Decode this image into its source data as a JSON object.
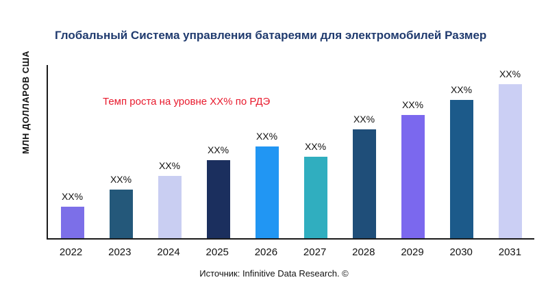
{
  "chart_data": {
    "type": "bar",
    "title": "Глобальный Система управления батареями для электромобилей Размер",
    "ylabel": "МЛН ДОЛЛАРОВ США",
    "xlabel": "",
    "categories": [
      "2022",
      "2023",
      "2024",
      "2025",
      "2026",
      "2027",
      "2028",
      "2029",
      "2030",
      "2031"
    ],
    "values": [
      18,
      28,
      36,
      45,
      53,
      47,
      63,
      71,
      80,
      89
    ],
    "ylim": [
      0,
      100
    ],
    "grid": false,
    "legend": "none",
    "data_labels": [
      "XX%",
      "XX%",
      "XX%",
      "XX%",
      "XX%",
      "XX%",
      "XX%",
      "XX%",
      "XX%",
      "XX%"
    ],
    "bar_colors": [
      "#7c6fe8",
      "#24587a",
      "#c9cef2",
      "#1b2f5e",
      "#2196f3",
      "#30aebf",
      "#1f4e79",
      "#7b68ee",
      "#1c5a8a",
      "#cbcff4"
    ],
    "annotation": {
      "text": "Темп роста на уровне XX% по РДЭ",
      "color": "#e8192c"
    },
    "source": "Источник: Infinitive Data Research. ©"
  },
  "colors": {
    "title": "#1f3a6e",
    "axis": "#1a1a1a",
    "label": "#111111"
  }
}
